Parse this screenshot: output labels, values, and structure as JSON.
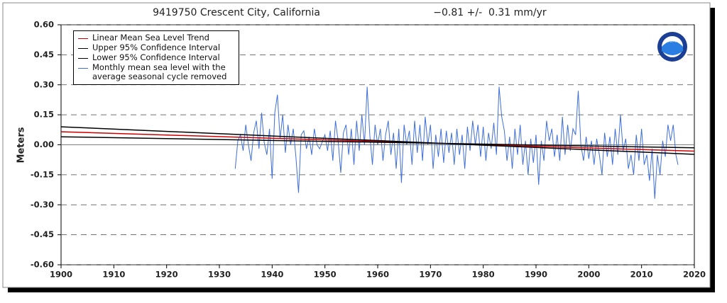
{
  "chart_data": {
    "type": "line",
    "title": "9419750 Crescent City, California",
    "subtitle": "−0.81 +/-  0.31 mm/yr",
    "y_label": "Meters",
    "logo_text": "NOAA",
    "xlim": [
      1900,
      2020
    ],
    "xticks": [
      1900,
      1910,
      1920,
      1930,
      1940,
      1950,
      1960,
      1970,
      1980,
      1990,
      2000,
      2010,
      2020
    ],
    "ylim": [
      -0.6,
      0.6
    ],
    "yticks": [
      {
        "value": 0.6,
        "label": "0.60"
      },
      {
        "value": 0.45,
        "label": "0.45"
      },
      {
        "value": 0.3,
        "label": "0.30"
      },
      {
        "value": 0.15,
        "label": "0.15"
      },
      {
        "value": 0,
        "label": "0.00"
      },
      {
        "value": -0.15,
        "label": "-0.15"
      },
      {
        "value": -0.3,
        "label": "-0.30"
      },
      {
        "value": -0.45,
        "label": "-0.45"
      },
      {
        "value": -0.6,
        "label": "-0.60"
      }
    ],
    "grid": true,
    "legend": "upper left",
    "series": [
      {
        "name": "Linear Mean Sea Level Trend",
        "color": "#cc0000",
        "x": [
          1900,
          2020
        ],
        "values": [
          0.065,
          -0.032
        ]
      },
      {
        "name": "Upper 95% Confidence Interval",
        "color": "#000000",
        "x": [
          1900,
          2020
        ],
        "values": [
          0.09,
          -0.048
        ]
      },
      {
        "name": "Lower 95% Confidence Interval",
        "color": "#000000",
        "x": [
          1900,
          2020
        ],
        "values": [
          0.04,
          -0.015
        ]
      },
      {
        "name": "Monthly mean sea level with the\n average seasonal cycle removed",
        "color": "#3f6fd8",
        "x": [
          1933.0,
          1933.5,
          1934.0,
          1934.5,
          1935.0,
          1935.5,
          1936.0,
          1936.5,
          1937.0,
          1937.5,
          1938.0,
          1938.5,
          1939.0,
          1939.5,
          1940.0,
          1940.5,
          1941.0,
          1941.5,
          1942.0,
          1942.5,
          1943.0,
          1943.5,
          1944.0,
          1944.5,
          1945.0,
          1945.5,
          1946.0,
          1946.5,
          1947.0,
          1947.5,
          1948.0,
          1948.5,
          1949.0,
          1950.0,
          1950.5,
          1951.0,
          1951.5,
          1952.0,
          1952.5,
          1953.0,
          1953.5,
          1954.0,
          1954.5,
          1955.0,
          1955.5,
          1956.0,
          1956.5,
          1957.0,
          1957.5,
          1958.0,
          1958.5,
          1959.0,
          1959.5,
          1960.0,
          1960.5,
          1961.0,
          1961.5,
          1962.0,
          1962.5,
          1963.0,
          1963.5,
          1964.0,
          1964.5,
          1965.0,
          1965.5,
          1966.0,
          1966.5,
          1967.0,
          1967.5,
          1968.0,
          1968.5,
          1969.0,
          1969.5,
          1970.0,
          1970.5,
          1971.0,
          1971.5,
          1972.0,
          1972.5,
          1973.0,
          1973.5,
          1974.0,
          1974.5,
          1975.0,
          1975.5,
          1976.0,
          1976.5,
          1977.0,
          1977.5,
          1978.0,
          1978.5,
          1979.0,
          1979.5,
          1980.0,
          1980.5,
          1981.0,
          1981.5,
          1982.0,
          1982.5,
          1983.0,
          1983.5,
          1984.0,
          1984.5,
          1985.0,
          1985.5,
          1986.0,
          1986.5,
          1987.0,
          1987.5,
          1988.0,
          1988.5,
          1989.0,
          1989.5,
          1990.0,
          1990.5,
          1991.0,
          1991.5,
          1992.0,
          1992.5,
          1993.0,
          1993.5,
          1994.0,
          1994.5,
          1995.0,
          1995.5,
          1996.0,
          1996.5,
          1997.0,
          1997.5,
          1998.0,
          1998.5,
          1999.0,
          1999.5,
          2000.0,
          2000.5,
          2001.0,
          2001.5,
          2002.0,
          2002.5,
          2003.0,
          2003.5,
          2004.0,
          2004.5,
          2005.0,
          2005.5,
          2006.0,
          2006.5,
          2007.0,
          2007.5,
          2008.0,
          2008.5,
          2009.0,
          2009.5,
          2010.0,
          2010.5,
          2011.0,
          2011.5,
          2012.0,
          2012.5,
          2013.0,
          2013.5,
          2014.0,
          2014.5,
          2015.0,
          2015.5,
          2016.0,
          2016.5,
          2016.9
        ],
        "values": [
          -0.12,
          0.02,
          0.05,
          -0.03,
          0.1,
          0.0,
          -0.08,
          0.06,
          0.12,
          -0.02,
          0.16,
          0.01,
          -0.05,
          0.08,
          -0.17,
          0.16,
          0.25,
          0.03,
          0.15,
          -0.04,
          0.1,
          0.0,
          0.08,
          -0.06,
          -0.24,
          0.05,
          0.07,
          -0.02,
          0.04,
          -0.05,
          0.08,
          0.0,
          -0.02,
          0.05,
          -0.03,
          0.07,
          -0.08,
          0.12,
          0.02,
          -0.14,
          0.06,
          0.1,
          -0.05,
          0.08,
          -0.1,
          0.12,
          -0.03,
          0.15,
          0.0,
          0.29,
          0.05,
          -0.1,
          0.1,
          0.0,
          0.08,
          -0.08,
          0.05,
          0.12,
          -0.05,
          0.06,
          -0.12,
          0.08,
          -0.19,
          0.1,
          0.0,
          0.07,
          -0.1,
          0.12,
          -0.04,
          0.1,
          -0.08,
          0.14,
          0.0,
          0.1,
          -0.12,
          0.05,
          -0.06,
          0.08,
          -0.09,
          0.07,
          -0.04,
          0.06,
          -0.1,
          0.08,
          -0.05,
          0.05,
          -0.12,
          0.09,
          -0.03,
          0.12,
          0.0,
          0.1,
          -0.06,
          0.09,
          -0.08,
          0.06,
          -0.02,
          0.11,
          -0.05,
          0.29,
          0.14,
          0.07,
          -0.08,
          0.04,
          -0.12,
          0.08,
          -0.05,
          0.1,
          -0.1,
          0.02,
          -0.15,
          0.03,
          -0.09,
          0.05,
          -0.2,
          0.02,
          -0.08,
          0.12,
          0.02,
          0.08,
          -0.06,
          0.05,
          -0.08,
          0.14,
          -0.05,
          0.1,
          -0.03,
          0.08,
          0.05,
          0.27,
          0.0,
          -0.08,
          0.04,
          -0.07,
          0.02,
          -0.1,
          0.03,
          -0.05,
          -0.15,
          0.06,
          -0.06,
          0.04,
          -0.1,
          0.08,
          -0.05,
          0.15,
          -0.03,
          0.03,
          -0.12,
          -0.05,
          -0.15,
          0.05,
          -0.08,
          0.08,
          -0.1,
          -0.05,
          -0.18,
          -0.02,
          -0.27,
          -0.05,
          -0.15,
          0.02,
          -0.06,
          0.1,
          0.02,
          0.1,
          -0.05,
          -0.1
        ]
      }
    ]
  }
}
